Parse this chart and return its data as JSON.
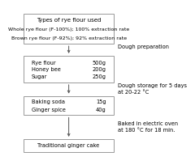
{
  "box1_lines": [
    "Types of rye flour used",
    "Whole rye flour (F-100%); 100% extraction rate",
    "Brown rye flour (F-92%); 92% extraction rate"
  ],
  "label1": "Dough preparation",
  "box2_left_lines": [
    "Rye flour",
    "Honey bee",
    "Sugar"
  ],
  "box2_right_lines": [
    "500g",
    "200g",
    "250g"
  ],
  "label2": "Dough storage for 5 days\nat 20-22 °C",
  "box3_left_lines": [
    "Baking soda",
    "Ginger spice"
  ],
  "box3_right_lines": [
    "15g",
    "40g"
  ],
  "label3": "Baked in electric oven\nat 180 °C for 18 min.",
  "box4_line": "Traditional ginger cake",
  "bg_color": "#ffffff",
  "box_edge_color": "#999999",
  "text_color": "#000000",
  "arrow_color": "#555555"
}
